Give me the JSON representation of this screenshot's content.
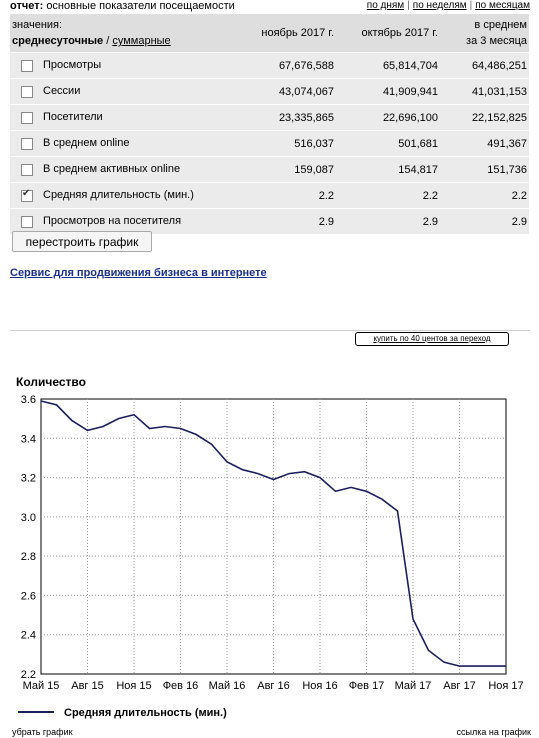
{
  "report": {
    "label": "отчет:",
    "title": "основные показатели посещаемости",
    "period_links": [
      "по дням",
      "по неделям",
      "по месяцам"
    ]
  },
  "table": {
    "values_label": "значения:",
    "mode_daily": "среднесуточные",
    "mode_sep": "/",
    "mode_total": "суммарные",
    "columns": [
      "ноябрь 2017 г.",
      "октябрь 2017 г."
    ],
    "avg_col_line1": "в среднем",
    "avg_col_line2": "за 3 месяца",
    "rows": [
      {
        "name": "Просмотры",
        "checked": false,
        "v1": "67,676,588",
        "v2": "65,814,704",
        "v3": "64,486,251"
      },
      {
        "name": "Сессии",
        "checked": false,
        "v1": "43,074,067",
        "v2": "41,909,941",
        "v3": "41,031,153"
      },
      {
        "name": "Посетители",
        "checked": false,
        "v1": "23,335,865",
        "v2": "22,696,100",
        "v3": "22,152,825"
      },
      {
        "name": "В среднем online",
        "checked": false,
        "v1": "516,037",
        "v2": "501,681",
        "v3": "491,367"
      },
      {
        "name": "В среднем активных online",
        "checked": false,
        "v1": "159,087",
        "v2": "154,817",
        "v3": "151,736"
      },
      {
        "name": "Средняя длительность (мин.)",
        "checked": true,
        "v1": "2.2",
        "v2": "2.2",
        "v3": "2.2"
      },
      {
        "name": "Просмотров на посетителя",
        "checked": false,
        "v1": "2.9",
        "v2": "2.9",
        "v3": "2.9"
      }
    ]
  },
  "rebuild_button": "перестроить график",
  "promo_link": "Сервис для продвижения бизнеса в интернете",
  "buy_button": "купить по 40 центов за переход",
  "chart_data": {
    "type": "line",
    "title": "Количество",
    "ylim": [
      2.2,
      3.6
    ],
    "y_ticks": [
      "3.6",
      "3.4",
      "3.2",
      "3.0",
      "2.8",
      "2.6",
      "2.4",
      "2.2"
    ],
    "x_ticks": [
      "Май 15",
      "Авг 15",
      "Ноя 15",
      "Фев 16",
      "Май 16",
      "Авг 16",
      "Ноя 16",
      "Фев 17",
      "Май 17",
      "Авг 17",
      "Ноя 17"
    ],
    "grid": true,
    "legend_position": "bottom",
    "series": [
      {
        "name": "Средняя длительность (мин.)",
        "color": "#1a1f5e",
        "x": [
          "2015-05",
          "2015-06",
          "2015-07",
          "2015-08",
          "2015-09",
          "2015-10",
          "2015-11",
          "2015-12",
          "2016-01",
          "2016-02",
          "2016-03",
          "2016-04",
          "2016-05",
          "2016-06",
          "2016-07",
          "2016-08",
          "2016-09",
          "2016-10",
          "2016-11",
          "2016-12",
          "2017-01",
          "2017-02",
          "2017-03",
          "2017-04",
          "2017-05",
          "2017-06",
          "2017-07",
          "2017-08",
          "2017-09",
          "2017-10",
          "2017-11"
        ],
        "values": [
          3.59,
          3.57,
          3.49,
          3.44,
          3.46,
          3.5,
          3.52,
          3.45,
          3.46,
          3.45,
          3.42,
          3.37,
          3.28,
          3.24,
          3.22,
          3.19,
          3.22,
          3.23,
          3.2,
          3.13,
          3.15,
          3.13,
          3.09,
          3.03,
          2.48,
          2.32,
          2.26,
          2.24,
          2.24,
          2.24,
          2.24
        ]
      }
    ]
  },
  "bottom": {
    "left": "убрать график",
    "right": "ссылка на график"
  }
}
